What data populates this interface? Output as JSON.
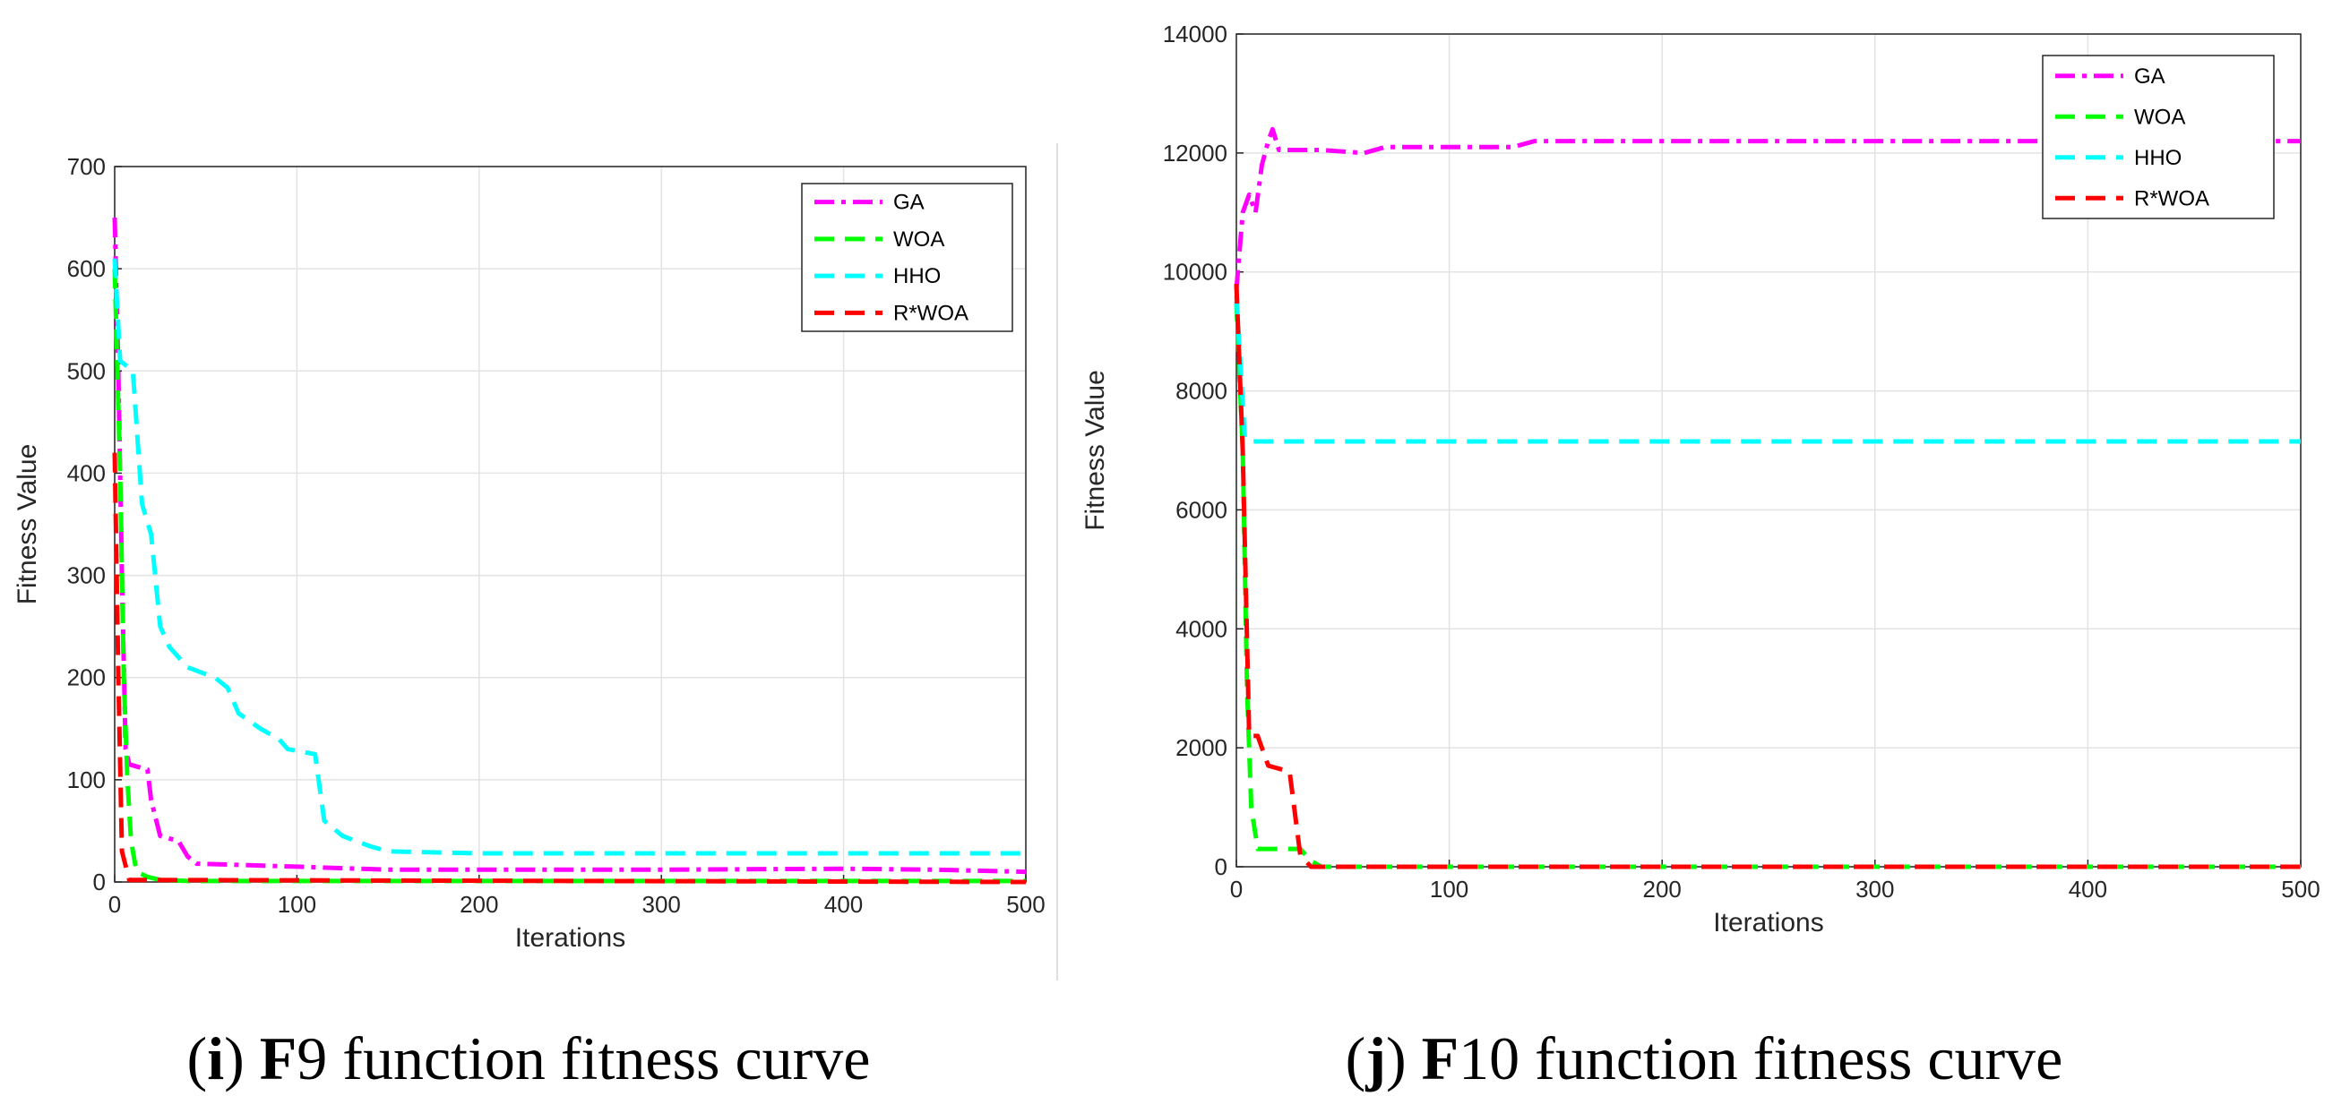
{
  "chart_data": [
    {
      "type": "line",
      "caption": {
        "paren_open": "(",
        "letter": "i",
        "paren_close": ")",
        "fn": "F",
        "fn_num": "9",
        "rest": " function fitness curve"
      },
      "title": "",
      "xlabel": "Iterations",
      "ylabel": "Fitness Value",
      "xlim": [
        0,
        500
      ],
      "ylim": [
        0,
        700
      ],
      "xticks": [
        0,
        100,
        200,
        300,
        400,
        500
      ],
      "yticks": [
        0,
        100,
        200,
        300,
        400,
        500,
        600,
        700
      ],
      "grid": true,
      "legend_position": "top-right",
      "series": [
        {
          "name": "GA",
          "color": "#ff00ff",
          "dash": "dashdot",
          "points": [
            [
              0,
              650
            ],
            [
              2,
              500
            ],
            [
              4,
              300
            ],
            [
              6,
              130
            ],
            [
              8,
              115
            ],
            [
              18,
              110
            ],
            [
              20,
              80
            ],
            [
              25,
              45
            ],
            [
              35,
              40
            ],
            [
              40,
              25
            ],
            [
              45,
              18
            ],
            [
              100,
              15
            ],
            [
              150,
              12
            ],
            [
              300,
              12
            ],
            [
              400,
              13
            ],
            [
              450,
              12
            ],
            [
              500,
              10
            ]
          ]
        },
        {
          "name": "WOA",
          "color": "#00ff00",
          "dash": "dashed",
          "points": [
            [
              0,
              600
            ],
            [
              3,
              400
            ],
            [
              5,
              200
            ],
            [
              7,
              100
            ],
            [
              9,
              40
            ],
            [
              12,
              10
            ],
            [
              18,
              5
            ],
            [
              25,
              2
            ],
            [
              40,
              1
            ],
            [
              500,
              1
            ]
          ]
        },
        {
          "name": "HHO",
          "color": "#00ffff",
          "dash": "dashed",
          "points": [
            [
              0,
              610
            ],
            [
              3,
              510
            ],
            [
              10,
              500
            ],
            [
              15,
              370
            ],
            [
              20,
              340
            ],
            [
              25,
              250
            ],
            [
              30,
              230
            ],
            [
              40,
              210
            ],
            [
              55,
              200
            ],
            [
              62,
              190
            ],
            [
              68,
              165
            ],
            [
              80,
              150
            ],
            [
              90,
              140
            ],
            [
              95,
              130
            ],
            [
              110,
              125
            ],
            [
              115,
              60
            ],
            [
              125,
              45
            ],
            [
              140,
              35
            ],
            [
              150,
              30
            ],
            [
              200,
              28
            ],
            [
              500,
              28
            ]
          ]
        },
        {
          "name": "R*WOA",
          "color": "#ff0000",
          "dash": "dashed",
          "points": [
            [
              0,
              420
            ],
            [
              2,
              200
            ],
            [
              4,
              30
            ],
            [
              8,
              2
            ],
            [
              500,
              0
            ]
          ]
        }
      ]
    },
    {
      "type": "line",
      "caption": {
        "paren_open": "(",
        "letter": "j",
        "paren_close": ")",
        "fn": "F",
        "fn_num": "10",
        "rest": " function fitness curve"
      },
      "title": "",
      "xlabel": "Iterations",
      "ylabel": "Fitness Value",
      "xlim": [
        0,
        500
      ],
      "ylim": [
        0,
        14000
      ],
      "xticks": [
        0,
        100,
        200,
        300,
        400,
        500
      ],
      "yticks": [
        0,
        2000,
        4000,
        6000,
        8000,
        10000,
        12000,
        14000
      ],
      "grid": true,
      "legend_position": "top-right",
      "series": [
        {
          "name": "GA",
          "color": "#ff00ff",
          "dash": "dashdot",
          "points": [
            [
              0,
              9700
            ],
            [
              3,
              11000
            ],
            [
              6,
              11300
            ],
            [
              9,
              11000
            ],
            [
              12,
              11800
            ],
            [
              15,
              12200
            ],
            [
              17,
              12400
            ],
            [
              20,
              12050
            ],
            [
              40,
              12050
            ],
            [
              60,
              12000
            ],
            [
              70,
              12100
            ],
            [
              130,
              12100
            ],
            [
              140,
              12200
            ],
            [
              300,
              12200
            ],
            [
              500,
              12200
            ]
          ]
        },
        {
          "name": "WOA",
          "color": "#00ff00",
          "dash": "dashed",
          "points": [
            [
              0,
              9500
            ],
            [
              3,
              7000
            ],
            [
              5,
              3000
            ],
            [
              7,
              1000
            ],
            [
              10,
              300
            ],
            [
              30,
              300
            ],
            [
              35,
              100
            ],
            [
              40,
              0
            ],
            [
              500,
              0
            ]
          ]
        },
        {
          "name": "HHO",
          "color": "#00ffff",
          "dash": "dashed",
          "points": [
            [
              0,
              9600
            ],
            [
              4,
              7200
            ],
            [
              8,
              7150
            ],
            [
              500,
              7150
            ]
          ]
        },
        {
          "name": "R*WOA",
          "color": "#ff0000",
          "dash": "dashed",
          "points": [
            [
              0,
              9800
            ],
            [
              3,
              7000
            ],
            [
              6,
              2200
            ],
            [
              10,
              2200
            ],
            [
              15,
              1700
            ],
            [
              25,
              1600
            ],
            [
              30,
              200
            ],
            [
              35,
              0
            ],
            [
              500,
              0
            ]
          ]
        }
      ]
    }
  ]
}
